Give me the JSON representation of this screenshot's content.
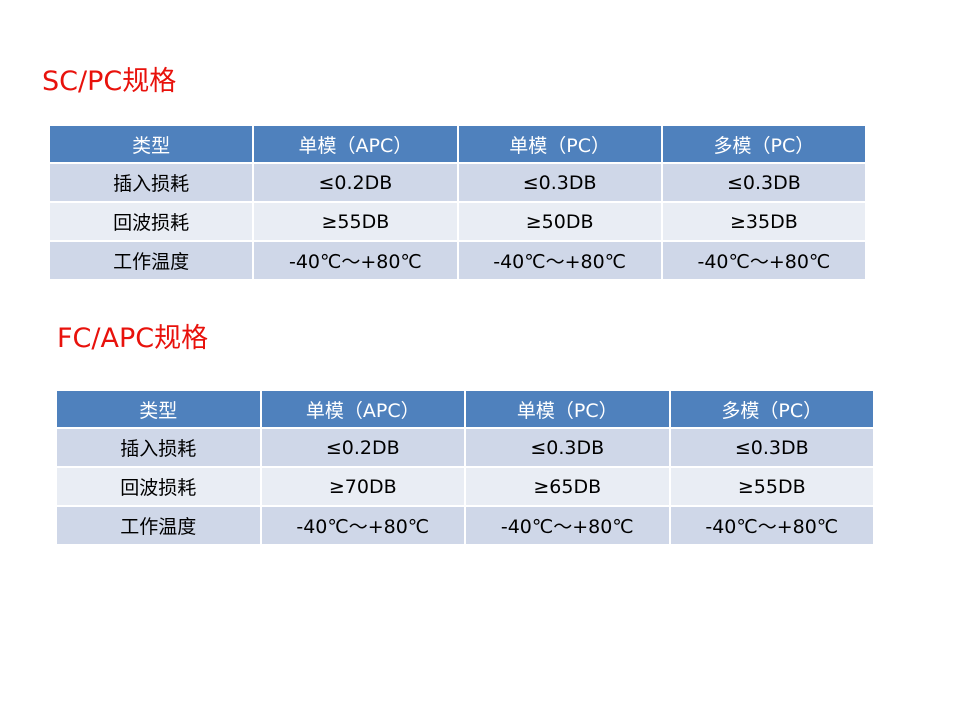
{
  "tables": [
    {
      "title": "SC/PC规格",
      "headers": [
        "类型",
        "单模（APC）",
        "单模（PC）",
        "多模（PC）"
      ],
      "rows": [
        [
          "插入损耗",
          "≤0.2DB",
          "≤0.3DB",
          "≤0.3DB"
        ],
        [
          "回波损耗",
          "≥55DB",
          "≥50DB",
          "≥35DB"
        ],
        [
          "工作温度",
          "-40℃～+80℃",
          "-40℃～+80℃",
          "-40℃～+80℃"
        ]
      ]
    },
    {
      "title": "FC/APC规格",
      "headers": [
        "类型",
        "单模（APC）",
        "单模（PC）",
        "多模（PC）"
      ],
      "rows": [
        [
          "插入损耗",
          "≤0.2DB",
          "≤0.3DB",
          "≤0.3DB"
        ],
        [
          "回波损耗",
          "≥70DB",
          "≥65DB",
          "≥55DB"
        ],
        [
          "工作温度",
          "-40℃～+80℃",
          "-40℃～+80℃",
          "-40℃～+80℃"
        ]
      ]
    }
  ]
}
